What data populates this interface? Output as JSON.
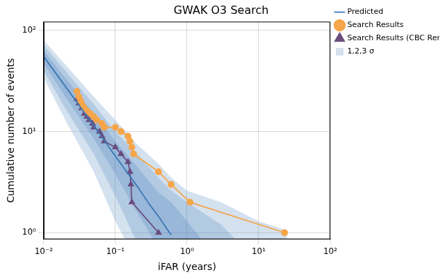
{
  "chart_data": {
    "type": "line",
    "title": "GWAK O3 Search",
    "x_label": "iFAR (years)",
    "y_label": "Cumulative number of events",
    "log": true,
    "grid": true,
    "legend": "upper right",
    "xlim": [
      0.01,
      100
    ],
    "ylim": [
      0.86,
      122
    ],
    "xticks": [
      {
        "value": 0.01,
        "label": "10⁻²"
      },
      {
        "value": 0.1,
        "label": "10⁻¹"
      },
      {
        "value": 1,
        "label": "10⁰"
      },
      {
        "value": 10,
        "label": "10¹"
      },
      {
        "value": 100,
        "label": "10²"
      }
    ],
    "yticks": [
      {
        "value": 1,
        "label": "10⁰"
      },
      {
        "value": 10,
        "label": "10¹"
      },
      {
        "value": 100,
        "label": "10²"
      }
    ],
    "series": [
      {
        "name": "Predicted",
        "color": "#3b78b4",
        "marker": "none",
        "line_style": "solid",
        "x": [
          0.01,
          0.02,
          0.05,
          0.1,
          0.2,
          0.3,
          0.4,
          0.5,
          0.6
        ],
        "values": [
          55,
          28,
          11.5,
          5.7,
          2.9,
          1.9,
          1.45,
          1.15,
          0.95
        ]
      },
      {
        "name": "Search Results",
        "color": "#f5a54a",
        "marker": "circle",
        "line_style": "solid",
        "x": [
          0.029,
          0.031,
          0.033,
          0.035,
          0.037,
          0.04,
          0.045,
          0.05,
          0.055,
          0.065,
          0.07,
          0.1,
          0.12,
          0.15,
          0.16,
          0.17,
          0.18,
          0.4,
          0.6,
          1.1,
          23
        ],
        "values": [
          25,
          22,
          20,
          18,
          17,
          16,
          15,
          14,
          13,
          12,
          11,
          11,
          10,
          9,
          8,
          7,
          6,
          4,
          3,
          2,
          1
        ]
      },
      {
        "name": "Search Results (CBC Removed)",
        "color": "#6a4c7e",
        "marker": "triangle",
        "line_style": "solid",
        "x": [
          0.029,
          0.031,
          0.034,
          0.037,
          0.04,
          0.043,
          0.048,
          0.05,
          0.06,
          0.065,
          0.07,
          0.1,
          0.12,
          0.15,
          0.16,
          0.165,
          0.17,
          0.4
        ],
        "values": [
          21,
          19,
          17,
          15,
          14,
          13,
          12,
          11,
          10,
          9,
          8,
          7,
          6,
          5,
          4,
          3,
          2,
          1
        ]
      },
      {
        "name": "1,2,3 σ",
        "type": "band",
        "color": "#3b78b4",
        "x": [
          0.01,
          0.02,
          0.05,
          0.1,
          0.2,
          0.4,
          0.6,
          1,
          3,
          10,
          25
        ],
        "bands": [
          {
            "lower": [
              47,
              22,
              8.5,
              3.8,
              1.6,
              0.7,
              0.5,
              0.5,
              0.5,
              0.5,
              0.5
            ],
            "upper": [
              63,
              34,
              15,
              8,
              4.5,
              2.5,
              2,
              1.3,
              0.5,
              0.5,
              0.5
            ]
          },
          {
            "lower": [
              40,
              17,
              6,
              2.3,
              0.8,
              0.5,
              0.5,
              0.5,
              0.5,
              0.5,
              0.5
            ],
            "upper": [
              71,
              40,
              18.5,
              10,
              6,
              3.5,
              2.6,
              2,
              1.2,
              0.5,
              0.5
            ]
          },
          {
            "lower": [
              34,
              13,
              4,
              1.3,
              0.5,
              0.5,
              0.5,
              0.5,
              0.5,
              0.5,
              0.5
            ],
            "upper": [
              80,
              46,
              22,
              13,
              7.5,
              4.8,
              3.5,
              2.6,
              2,
              1.3,
              1.05
            ]
          }
        ]
      }
    ]
  }
}
